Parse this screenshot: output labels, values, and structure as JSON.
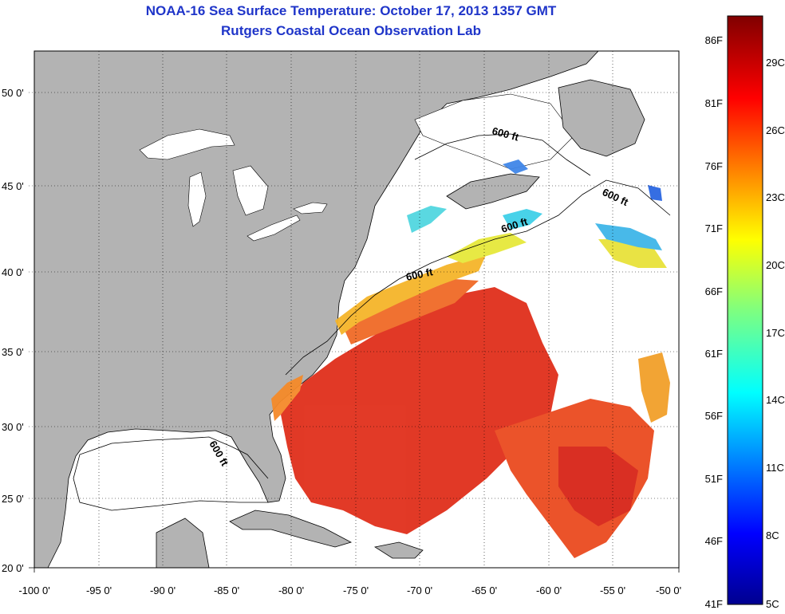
{
  "header": {
    "title": "NOAA-16 Sea Surface Temperature:  October 17, 2013 1357 GMT",
    "subtitle": "Rutgers Coastal Ocean Observation Lab"
  },
  "map": {
    "lon_ticks": [
      "-100 0'",
      "-95 0'",
      "-90 0'",
      "-85 0'",
      "-80 0'",
      "-75 0'",
      "-70 0'",
      "-65 0'",
      "-60 0'",
      "-55 0'",
      "-50 0'"
    ],
    "lat_ticks": [
      "50 0'",
      "45 0'",
      "40 0'",
      "35 0'",
      "30 0'",
      "25 0'",
      "20 0'"
    ],
    "contour_labels": [
      "600 ft",
      "600 ft",
      "600 ft",
      "600 ft",
      "600 ft"
    ]
  },
  "colorbar": {
    "fahrenheit_labels": [
      "86F",
      "81F",
      "76F",
      "71F",
      "66F",
      "61F",
      "56F",
      "51F",
      "46F",
      "41F"
    ],
    "celsius_labels": [
      "29C",
      "26C",
      "23C",
      "20C",
      "17C",
      "14C",
      "11C",
      "8C",
      "5C"
    ]
  },
  "colors": {
    "land": "#b3b3b3",
    "title": "#1f35c9",
    "warm": "#e83a1c",
    "cool": "#1f6fe0"
  }
}
